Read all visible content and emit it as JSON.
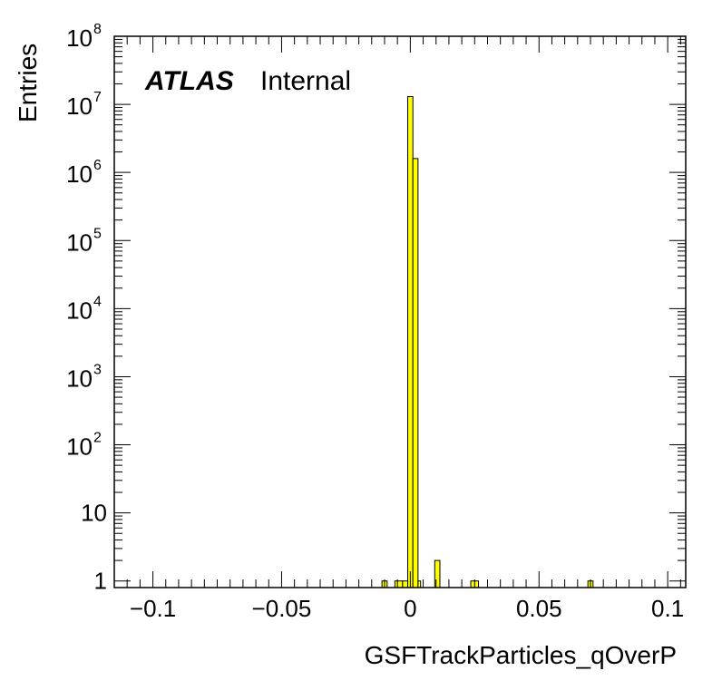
{
  "chart_data": {
    "type": "bar",
    "title": "",
    "xlabel": "GSFTrackParticles_qOverP",
    "ylabel": "Entries",
    "xlim": [
      -0.115,
      0.107
    ],
    "ylim": [
      0.8,
      100000000
    ],
    "log_y": true,
    "grid": false,
    "legend": "none",
    "bar_color": "#ffff00",
    "edge_color": "#000000",
    "x_ticks": [
      {
        "value": -0.1,
        "label": "−0.1"
      },
      {
        "value": -0.05,
        "label": "−0.05"
      },
      {
        "value": 0,
        "label": "0"
      },
      {
        "value": 0.05,
        "label": "0.05"
      },
      {
        "value": 0.1,
        "label": "0.1"
      }
    ],
    "y_ticks": [
      {
        "value": 1,
        "base": "1",
        "exp": ""
      },
      {
        "value": 10,
        "base": "10",
        "exp": ""
      },
      {
        "value": 100,
        "base": "10",
        "exp": "2"
      },
      {
        "value": 1000,
        "base": "10",
        "exp": "3"
      },
      {
        "value": 10000,
        "base": "10",
        "exp": "4"
      },
      {
        "value": 100000,
        "base": "10",
        "exp": "5"
      },
      {
        "value": 1000000,
        "base": "10",
        "exp": "6"
      },
      {
        "value": 10000000,
        "base": "10",
        "exp": "7"
      },
      {
        "value": 100000000,
        "base": "10",
        "exp": "8"
      }
    ],
    "bins": [
      {
        "x0": -0.011,
        "x1": -0.009,
        "y": 1
      },
      {
        "x0": -0.006,
        "x1": -0.003,
        "y": 1
      },
      {
        "x0": -0.003,
        "x1": -0.001,
        "y": 1
      },
      {
        "x0": -0.001,
        "x1": 0.001,
        "y": 13000000
      },
      {
        "x0": 0.001,
        "x1": 0.003,
        "y": 1600000
      },
      {
        "x0": 0.003,
        "x1": 0.004,
        "y": 1
      },
      {
        "x0": 0.0095,
        "x1": 0.0115,
        "y": 2
      },
      {
        "x0": 0.0235,
        "x1": 0.0265,
        "y": 1
      },
      {
        "x0": 0.069,
        "x1": 0.071,
        "y": 1
      }
    ],
    "annotations": {
      "atlas": "ATLAS",
      "status": "Internal"
    }
  }
}
